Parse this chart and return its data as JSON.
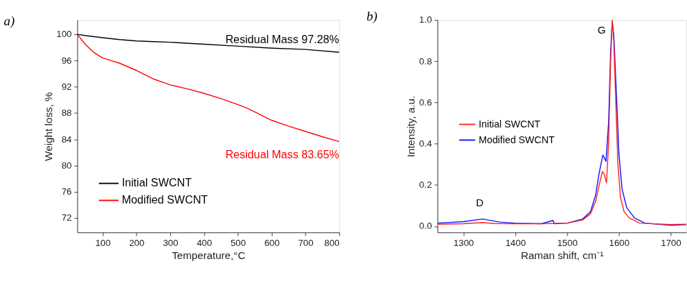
{
  "chart_data": [
    {
      "type": "line",
      "title": "a)",
      "xlabel": "Temperature,°C",
      "ylabel": "Weight loss, %",
      "xlim": [
        25,
        800
      ],
      "ylim": [
        69.8,
        102.2
      ],
      "xticks": [
        100,
        200,
        300,
        400,
        500,
        600,
        700,
        800
      ],
      "yticks": [
        72,
        76,
        80,
        84,
        88,
        92,
        96,
        100
      ],
      "grid": false,
      "legend": "bottom left",
      "marker": "none",
      "line_style": "solid",
      "annotations": [
        "Residual Mass 97.28%",
        "Residual Mass 83.65%"
      ],
      "series": [
        {
          "name": "Initial SWCNT",
          "color": "#000000",
          "x": [
            25,
            50,
            100,
            150,
            200,
            250,
            300,
            400,
            500,
            600,
            700,
            800
          ],
          "values": [
            100,
            99.8,
            99.5,
            99.2,
            99.0,
            98.9,
            98.8,
            98.5,
            98.2,
            97.9,
            97.7,
            97.28
          ]
        },
        {
          "name": "Modified SWCNT",
          "color": "#ff0000",
          "x": [
            25,
            50,
            75,
            100,
            125,
            150,
            200,
            250,
            300,
            350,
            400,
            450,
            500,
            530,
            600,
            650,
            700,
            750,
            800
          ],
          "values": [
            100,
            98.4,
            97.2,
            96.4,
            96.0,
            95.6,
            94.5,
            93.2,
            92.3,
            91.7,
            91.0,
            90.2,
            89.3,
            88.7,
            86.9,
            86.0,
            85.2,
            84.4,
            83.65
          ]
        }
      ]
    },
    {
      "type": "line",
      "title": "b)",
      "xlabel": "Raman shift, cm⁻¹",
      "ylabel": "Intensity, a.u.",
      "xlim": [
        1250,
        1730
      ],
      "ylim": [
        -0.03,
        1.0
      ],
      "xticks": [
        1300,
        1400,
        1500,
        1600,
        1700
      ],
      "yticks": [
        {
          "value": 0,
          "label": "0.0"
        },
        0.2,
        0.4,
        0.6,
        0.8,
        {
          "value": 1,
          "label": "1.0"
        }
      ],
      "grid": false,
      "legend": "left",
      "marker": "none",
      "line_style": "solid",
      "annotations": [
        "G",
        "D"
      ],
      "series": [
        {
          "name": "Initial SWCNT",
          "color": "#ff2020",
          "x": [
            1250,
            1300,
            1337,
            1360,
            1400,
            1450,
            1500,
            1530,
            1545,
            1555,
            1562,
            1568,
            1572,
            1576,
            1580,
            1584,
            1587,
            1590,
            1594,
            1598,
            1603,
            1610,
            1620,
            1640,
            1700,
            1730
          ],
          "values": [
            0.01,
            0.012,
            0.018,
            0.013,
            0.012,
            0.012,
            0.015,
            0.03,
            0.06,
            0.12,
            0.2,
            0.265,
            0.25,
            0.21,
            0.4,
            0.8,
            1.0,
            0.9,
            0.6,
            0.3,
            0.14,
            0.07,
            0.04,
            0.015,
            0.008,
            0.01
          ]
        },
        {
          "name": "Modified SWCNT",
          "color": "#1010ff",
          "x": [
            1250,
            1300,
            1337,
            1370,
            1400,
            1450,
            1473,
            1475,
            1500,
            1530,
            1545,
            1555,
            1562,
            1569,
            1575,
            1580,
            1584,
            1587,
            1590,
            1595,
            1600,
            1606,
            1615,
            1630,
            1650,
            1700,
            1730
          ],
          "values": [
            0.015,
            0.022,
            0.035,
            0.02,
            0.015,
            0.012,
            0.028,
            0.012,
            0.015,
            0.035,
            0.07,
            0.15,
            0.26,
            0.345,
            0.315,
            0.5,
            0.85,
            0.99,
            0.93,
            0.65,
            0.35,
            0.18,
            0.09,
            0.04,
            0.015,
            0.005,
            0.008
          ]
        }
      ]
    }
  ]
}
